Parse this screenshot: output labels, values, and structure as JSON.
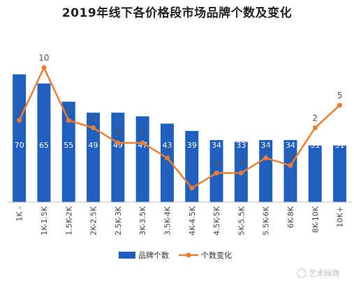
{
  "chart_data": {
    "type": "bar",
    "title": "2019年线下各价格段市场品牌个数及变化",
    "categories": [
      "1K -",
      "1K-1.5K",
      "1.5K-2K",
      "2K-2.5K",
      "2.5K-3K",
      "3K-3.5K",
      "3.5K-4K",
      "4K-4.5K",
      "4.5K-5K",
      "5K-5.5K",
      "5.5K-6K",
      "6K-8K",
      "8K-10K",
      "10K+"
    ],
    "series": [
      {
        "name": "品牌个数",
        "type": "bar",
        "color": "#1F5FBF",
        "values": [
          70,
          65,
          55,
          49,
          49,
          47,
          43,
          39,
          34,
          33,
          34,
          34,
          31,
          31
        ]
      },
      {
        "name": "个数变化",
        "type": "line",
        "color": "#ED7D31",
        "values": [
          3,
          10,
          3,
          2,
          0,
          0,
          -2,
          -6,
          -4,
          -4,
          -2,
          -3,
          2,
          5
        ],
        "labels": [
          "3",
          "10",
          "3",
          "2",
          "0",
          "0",
          "-2",
          "",
          "-4",
          "-4",
          "-2",
          "-3",
          "2",
          "5"
        ]
      }
    ],
    "legend_position": "bottom",
    "grid": false
  },
  "watermark": "艺术网商"
}
